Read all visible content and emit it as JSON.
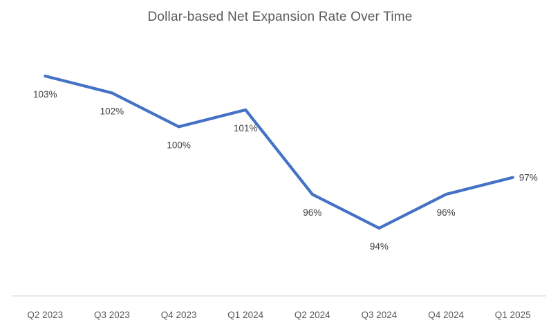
{
  "chart_data": {
    "type": "line",
    "title": "Dollar-based Net Expansion Rate Over Time",
    "categories": [
      "Q2 2023",
      "Q3 2023",
      "Q4 2023",
      "Q1 2024",
      "Q2 2024",
      "Q3 2024",
      "Q4 2024",
      "Q1 2025"
    ],
    "values": [
      103,
      102,
      100,
      101,
      96,
      94,
      96,
      97
    ],
    "data_labels": [
      "103%",
      "102%",
      "100%",
      "101%",
      "96%",
      "94%",
      "96%",
      "97%"
    ],
    "xlabel": "",
    "ylabel": "",
    "ylim": [
      90,
      106
    ],
    "grid": false,
    "legend": "none",
    "colors": {
      "line": "#4472C4",
      "title": "#595959",
      "axis_labels": "#595959",
      "data_labels": "#404040",
      "axis_line": "#D9D9D9",
      "background": "#FFFFFF"
    }
  }
}
